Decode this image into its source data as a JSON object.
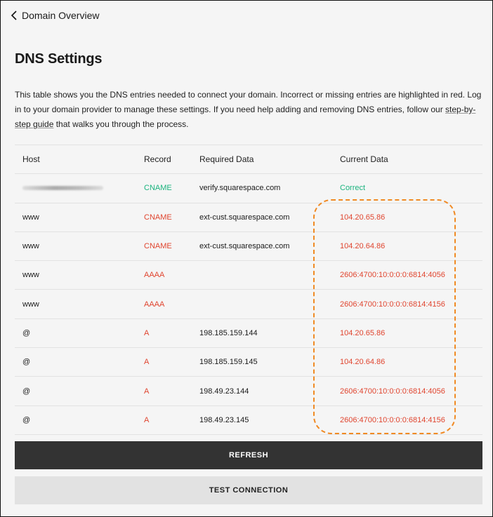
{
  "nav": {
    "back_label": "Domain Overview"
  },
  "page": {
    "title": "DNS Settings",
    "description_pre": "This table shows you the DNS entries needed to connect your domain. Incorrect or missing entries are highlighted in red. Log in to your domain provider to manage these settings. If you need help adding and removing DNS entries, follow our ",
    "link": "step-by-step guide",
    "description_post": " that walks you through the process."
  },
  "colors": {
    "error": "#e0452f",
    "ok": "#1bb37e",
    "highlight": "#f08a24"
  },
  "table": {
    "headers": [
      "Host",
      "Record",
      "Required Data",
      "Current Data"
    ],
    "rows": [
      {
        "host": "",
        "host_blurred": true,
        "record": "CNAME",
        "required": "verify.squarespace.com",
        "current": "Correct",
        "status": "ok"
      },
      {
        "host": "www",
        "record": "CNAME",
        "required": "ext-cust.squarespace.com",
        "current": "104.20.65.86",
        "status": "error"
      },
      {
        "host": "www",
        "record": "CNAME",
        "required": "ext-cust.squarespace.com",
        "current": "104.20.64.86",
        "status": "error"
      },
      {
        "host": "www",
        "record": "AAAA",
        "required": "",
        "current": "2606:4700:10:0:0:0:6814:4056",
        "status": "error"
      },
      {
        "host": "www",
        "record": "AAAA",
        "required": "",
        "current": "2606:4700:10:0:0:0:6814:4156",
        "status": "error"
      },
      {
        "host": "@",
        "record": "A",
        "required": "198.185.159.144",
        "current": "104.20.65.86",
        "status": "error"
      },
      {
        "host": "@",
        "record": "A",
        "required": "198.185.159.145",
        "current": "104.20.64.86",
        "status": "error"
      },
      {
        "host": "@",
        "record": "A",
        "required": "198.49.23.144",
        "current": "2606:4700:10:0:0:0:6814:4056",
        "status": "error"
      },
      {
        "host": "@",
        "record": "A",
        "required": "198.49.23.145",
        "current": "2606:4700:10:0:0:0:6814:4156",
        "status": "error"
      }
    ]
  },
  "buttons": {
    "refresh": "REFRESH",
    "test": "TEST CONNECTION"
  }
}
